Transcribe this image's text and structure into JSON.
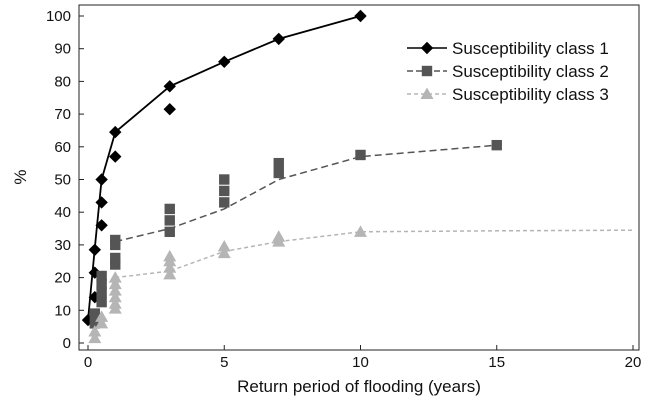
{
  "chart_data": {
    "type": "scatter",
    "xlabel": "Return period of flooding (years)",
    "ylabel": "%",
    "xlim": [
      0,
      20
    ],
    "ylim": [
      0,
      100
    ],
    "x_ticks": [
      0,
      5,
      10,
      15,
      20
    ],
    "y_ticks": [
      0,
      10,
      20,
      30,
      40,
      50,
      60,
      70,
      80,
      90,
      100
    ],
    "grid": false,
    "legend_position": "top-right",
    "series": [
      {
        "name": "Susceptibility class 1",
        "marker": "diamond",
        "line": "solid",
        "color": "#000000",
        "points": [
          [
            0,
            7
          ],
          [
            0.25,
            14
          ],
          [
            0.25,
            21.5
          ],
          [
            0.25,
            28.5
          ],
          [
            0.5,
            36
          ],
          [
            0.5,
            43
          ],
          [
            0.5,
            50
          ],
          [
            1,
            57
          ],
          [
            1,
            64.5
          ],
          [
            3,
            71.5
          ],
          [
            3,
            78.5
          ],
          [
            5,
            86
          ],
          [
            7,
            93
          ],
          [
            10,
            100
          ]
        ],
        "fit": [
          [
            0,
            7
          ],
          [
            0.25,
            29
          ],
          [
            0.5,
            50
          ],
          [
            1,
            64.5
          ],
          [
            3,
            78.5
          ],
          [
            5,
            86
          ],
          [
            7,
            93
          ],
          [
            10,
            100
          ]
        ]
      },
      {
        "name": "Susceptibility class 2",
        "marker": "square",
        "line": "dashed",
        "color": "#555555",
        "points": [
          [
            0.25,
            6
          ],
          [
            0.25,
            9
          ],
          [
            0.5,
            12.5
          ],
          [
            0.5,
            15.5
          ],
          [
            0.5,
            18
          ],
          [
            0.5,
            20.5
          ],
          [
            1,
            24
          ],
          [
            1,
            26
          ],
          [
            1,
            30
          ],
          [
            1,
            31.5
          ],
          [
            3,
            34
          ],
          [
            3,
            37.5
          ],
          [
            3,
            41
          ],
          [
            5,
            43
          ],
          [
            5,
            46.5
          ],
          [
            5,
            50
          ],
          [
            7,
            52
          ],
          [
            7,
            55
          ],
          [
            10,
            57.5
          ],
          [
            15,
            60.5
          ]
        ],
        "fit": [
          [
            1,
            31
          ],
          [
            3,
            35
          ],
          [
            5,
            41
          ],
          [
            7,
            50
          ],
          [
            10,
            57
          ],
          [
            15,
            60.5
          ]
        ]
      },
      {
        "name": "Susceptibility class 3",
        "marker": "triangle",
        "line": "dashed",
        "color": "#b5b5b5",
        "points": [
          [
            0.25,
            1.5
          ],
          [
            0.25,
            3.5
          ],
          [
            0.5,
            6
          ],
          [
            0.5,
            8
          ],
          [
            1,
            10.5
          ],
          [
            1,
            12
          ],
          [
            1,
            14
          ],
          [
            1,
            16
          ],
          [
            1,
            18
          ],
          [
            1,
            20
          ],
          [
            3,
            21
          ],
          [
            3,
            23
          ],
          [
            3,
            25
          ],
          [
            3,
            26.5
          ],
          [
            5,
            27.5
          ],
          [
            5,
            29.5
          ],
          [
            7,
            31
          ],
          [
            7,
            32.5
          ],
          [
            10,
            34
          ]
        ],
        "fit": [
          [
            1,
            20
          ],
          [
            3,
            22
          ],
          [
            5,
            28
          ],
          [
            7,
            31
          ],
          [
            10,
            34
          ],
          [
            15,
            34.3
          ],
          [
            20,
            34.5
          ]
        ]
      }
    ]
  }
}
